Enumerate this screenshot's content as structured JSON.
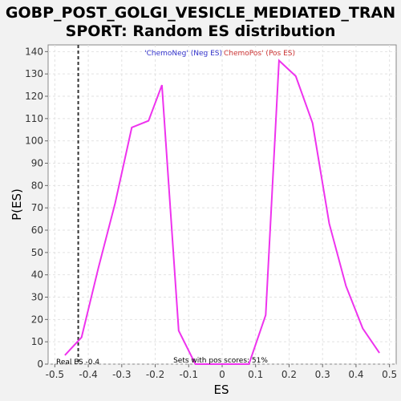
{
  "chart_data": {
    "type": "line",
    "title_line1": "GOBP_POST_GOLGI_VESICLE_MEDIATED_TRAN",
    "title_line2": "SPORT: Random ES distribution",
    "xlabel": "ES",
    "ylabel": "P(ES)",
    "xlim": [
      -0.52,
      0.52
    ],
    "ylim": [
      0,
      143
    ],
    "x_ticks": [
      -0.5,
      -0.4,
      -0.3,
      -0.2,
      -0.1,
      0,
      0.1,
      0.2,
      0.3,
      0.4,
      0.5
    ],
    "x_tick_labels": [
      "-0.5",
      "-0.4",
      "-0.3",
      "-0.2",
      "-0.1",
      "0",
      "0.1",
      "0.2",
      "0.3",
      "0.4",
      "0.5"
    ],
    "y_ticks": [
      0,
      10,
      20,
      30,
      40,
      50,
      60,
      70,
      80,
      90,
      100,
      110,
      120,
      130,
      140
    ],
    "y_tick_labels": [
      "0",
      "10",
      "20",
      "30",
      "40",
      "50",
      "60",
      "70",
      "80",
      "90",
      "100",
      "110",
      "120",
      "130",
      "140"
    ],
    "grid": true,
    "series": [
      {
        "color": "#ee33ee",
        "x": [
          -0.47,
          -0.42,
          -0.37,
          -0.32,
          -0.27,
          -0.22,
          -0.18,
          -0.13,
          -0.08,
          -0.03,
          0.03,
          0.08,
          0.13,
          0.17,
          0.22,
          0.27,
          0.32,
          0.37,
          0.42,
          0.47
        ],
        "y": [
          4,
          12,
          43,
          72,
          106,
          109,
          125,
          15,
          0,
          0,
          0,
          0,
          22,
          136,
          129,
          108,
          63,
          35,
          16,
          5
        ]
      }
    ],
    "real_es": -0.43,
    "real_es_label": "Real ES -0.4",
    "legend_neg": "'ChemoNeg' (Neg ES)",
    "legend_pos": "ChemoPos' (Pos ES)",
    "legend_neg_color": "#3333cc",
    "legend_pos_color": "#cc3333",
    "pos_scores_note": "Sets with pos scores: 51%"
  }
}
